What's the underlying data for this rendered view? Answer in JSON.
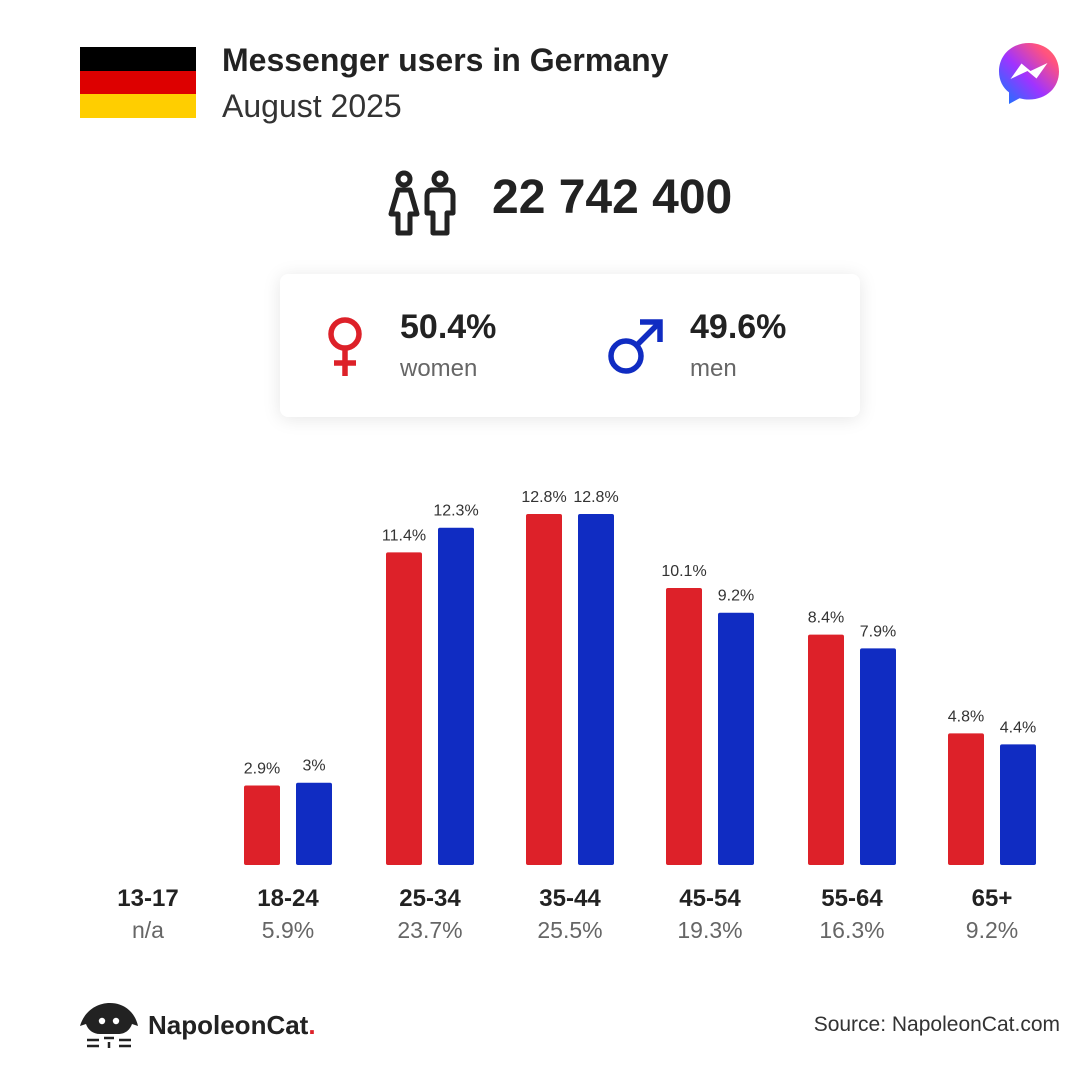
{
  "header": {
    "title": "Messenger users in Germany",
    "subtitle": "August 2025",
    "flag_colors": [
      "#000000",
      "#dd0000",
      "#ffce00"
    ]
  },
  "total": {
    "value": "22 742 400",
    "icon": "people-icon"
  },
  "gender": {
    "women": {
      "pct": "50.4%",
      "label": "women",
      "icon": "female-symbol-icon",
      "color": "#dd2129"
    },
    "men": {
      "pct": "49.6%",
      "label": "men",
      "icon": "male-symbol-icon",
      "color": "#102cc2"
    }
  },
  "chart_data": {
    "type": "bar",
    "categories": [
      "13-17",
      "18-24",
      "25-34",
      "35-44",
      "45-54",
      "55-64",
      "65+"
    ],
    "category_shares": [
      "n/a",
      "5.9%",
      "23.7%",
      "25.5%",
      "19.3%",
      "16.3%",
      "9.2%"
    ],
    "series": [
      {
        "color": "#dd2129",
        "values": [
          null,
          2.9,
          11.4,
          12.8,
          10.1,
          8.4,
          4.8
        ],
        "labels": [
          "",
          "2.9%",
          "11.4%",
          "12.8%",
          "10.1%",
          "8.4%",
          "4.8%"
        ]
      },
      {
        "color": "#102cc2",
        "values": [
          null,
          3.0,
          12.3,
          12.8,
          9.2,
          7.9,
          4.4
        ],
        "labels": [
          "",
          "3%",
          "12.3%",
          "12.8%",
          "9.2%",
          "7.9%",
          "4.4%"
        ]
      }
    ],
    "ylim": [
      0,
      13
    ],
    "grid": false,
    "legend": "none"
  },
  "footer": {
    "brand": "NapoleonCat",
    "brand_dot": ".",
    "source": "Source: NapoleonCat.com"
  }
}
